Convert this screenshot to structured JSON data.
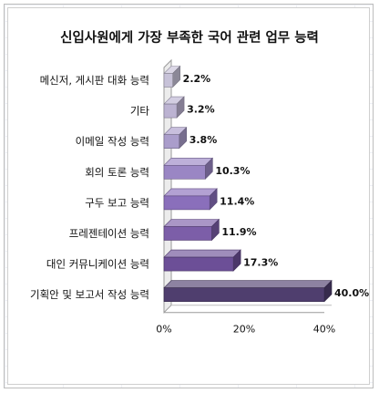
{
  "chart_data": {
    "type": "bar",
    "orientation": "horizontal",
    "title": "신입사원에게 가장 부족한 국어 관련 업무 능력",
    "categories": [
      "메신저, 게시판 대화 능력",
      "기타",
      "이메일 작성 능력",
      "회의 토론 능력",
      "구두 보고 능력",
      "프레젠테이션 능력",
      "대인 커뮤니케이션 능력",
      "기획안 및 보고서 작성 능력"
    ],
    "values": [
      2.2,
      3.2,
      3.8,
      10.3,
      11.4,
      11.9,
      17.3,
      40.0
    ],
    "value_labels": [
      "2.2%",
      "3.2%",
      "3.8%",
      "10.3%",
      "11.4%",
      "11.9%",
      "17.3%",
      "40.0%"
    ],
    "xlim": [
      0,
      40
    ],
    "xticks": [
      "0%",
      "20%",
      "40%"
    ],
    "colors": [
      "#c7c2d8",
      "#bcb3d2",
      "#aa9dcb",
      "#9a86c4",
      "#8a6fbb",
      "#7c5ea8",
      "#6c4f97",
      "#4f3e6e"
    ],
    "grid": false,
    "legend": "none"
  }
}
